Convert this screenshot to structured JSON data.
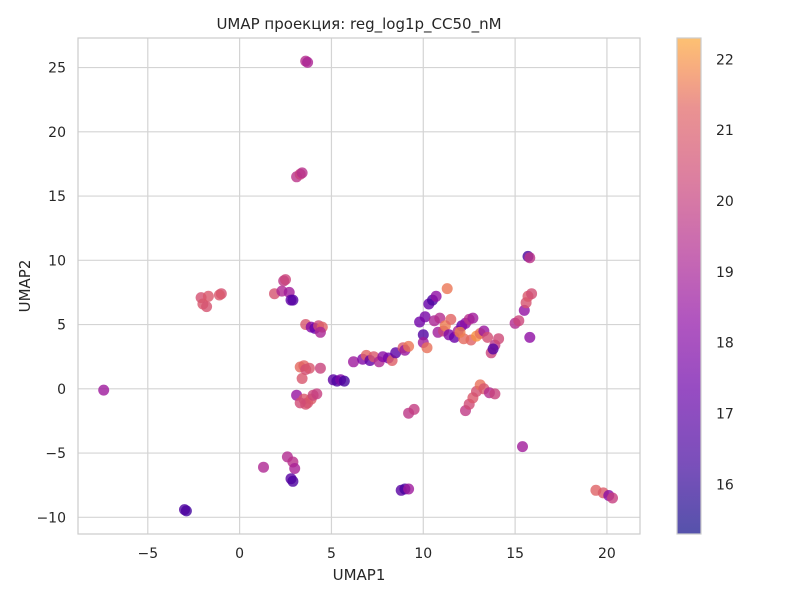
{
  "chart_data": {
    "type": "scatter",
    "title": "UMAP проекция: reg_log1p_CC50_nM",
    "xlabel": "UMAP1",
    "ylabel": "UMAP2",
    "xlim": [
      -8.8,
      21.8
    ],
    "ylim": [
      -11.3,
      27.3
    ],
    "xticks": [
      -5,
      0,
      5,
      10,
      15,
      20
    ],
    "yticks": [
      -10,
      -5,
      0,
      5,
      10,
      15,
      20,
      25
    ],
    "xtick_labels": [
      "−5",
      "0",
      "5",
      "10",
      "15",
      "20"
    ],
    "ytick_labels": [
      "−10",
      "−5",
      "0",
      "5",
      "10",
      "15",
      "20",
      "25"
    ],
    "grid": true,
    "colormap": "plasma",
    "colorbar": {
      "range": [
        15.3,
        22.3
      ],
      "ticks": [
        16,
        17,
        18,
        19,
        20,
        21,
        22
      ],
      "tick_labels": [
        "16",
        "17",
        "18",
        "19",
        "20",
        "21",
        "22"
      ]
    },
    "points": [
      [
        -7.4,
        -0.1,
        18.7
      ],
      [
        -2.9,
        -9.5,
        16.3
      ],
      [
        -3.0,
        -9.4,
        16.6
      ],
      [
        -2.1,
        7.1,
        20.6
      ],
      [
        -2.0,
        6.6,
        20.8
      ],
      [
        -1.8,
        6.4,
        20.7
      ],
      [
        -1.7,
        7.2,
        20.9
      ],
      [
        -1.0,
        7.4,
        20.6
      ],
      [
        -1.1,
        7.3,
        20.9
      ],
      [
        1.3,
        -6.1,
        19.2
      ],
      [
        1.9,
        7.4,
        20.7
      ],
      [
        2.3,
        7.6,
        19.2
      ],
      [
        2.4,
        8.4,
        19.7
      ],
      [
        2.5,
        8.5,
        20.2
      ],
      [
        2.7,
        7.5,
        18.8
      ],
      [
        2.8,
        6.9,
        17.1
      ],
      [
        2.9,
        6.9,
        16.8
      ],
      [
        2.6,
        -5.3,
        19.3
      ],
      [
        2.9,
        -5.7,
        19.5
      ],
      [
        3.0,
        -6.2,
        19.0
      ],
      [
        2.8,
        -7.0,
        16.9
      ],
      [
        2.9,
        -7.2,
        16.6
      ],
      [
        3.1,
        16.5,
        19.6
      ],
      [
        3.3,
        16.7,
        20.1
      ],
      [
        3.4,
        16.8,
        19.5
      ],
      [
        3.6,
        25.5,
        19.4
      ],
      [
        3.7,
        25.4,
        19.1
      ],
      [
        3.1,
        -0.5,
        18.5
      ],
      [
        3.3,
        1.7,
        21.4
      ],
      [
        3.5,
        1.8,
        21.3
      ],
      [
        3.6,
        1.5,
        20.5
      ],
      [
        3.4,
        0.8,
        20.8
      ],
      [
        3.5,
        -0.8,
        20.9
      ],
      [
        3.7,
        -1.1,
        20.6
      ],
      [
        3.9,
        -0.8,
        21.0
      ],
      [
        3.6,
        -1.2,
        20.7
      ],
      [
        3.3,
        -1.1,
        20.4
      ],
      [
        4.0,
        -0.5,
        20.2
      ],
      [
        4.2,
        -0.4,
        20.0
      ],
      [
        3.8,
        1.6,
        20.8
      ],
      [
        4.4,
        1.6,
        20.1
      ],
      [
        3.6,
        5.0,
        20.8
      ],
      [
        3.9,
        4.8,
        18.1
      ],
      [
        4.1,
        4.7,
        17.3
      ],
      [
        4.3,
        4.9,
        20.3
      ],
      [
        4.5,
        4.8,
        21.2
      ],
      [
        4.4,
        4.4,
        19.1
      ],
      [
        5.1,
        0.7,
        17.0
      ],
      [
        5.3,
        0.6,
        16.6
      ],
      [
        5.5,
        0.7,
        17.8
      ],
      [
        5.7,
        0.6,
        16.4
      ],
      [
        6.2,
        2.1,
        18.7
      ],
      [
        6.7,
        2.3,
        17.9
      ],
      [
        6.9,
        2.6,
        21.3
      ],
      [
        7.1,
        2.2,
        17.1
      ],
      [
        7.3,
        2.5,
        20.9
      ],
      [
        7.6,
        2.1,
        19.2
      ],
      [
        7.8,
        2.5,
        18.2
      ],
      [
        8.1,
        2.4,
        17.7
      ],
      [
        8.3,
        2.2,
        21.1
      ],
      [
        8.5,
        2.8,
        17.0
      ],
      [
        8.9,
        3.2,
        21.0
      ],
      [
        9.0,
        3.0,
        18.6
      ],
      [
        9.2,
        3.3,
        21.6
      ],
      [
        8.8,
        -7.9,
        16.9
      ],
      [
        9.0,
        -7.8,
        16.5
      ],
      [
        9.2,
        -7.8,
        18.7
      ],
      [
        9.2,
        -1.9,
        19.7
      ],
      [
        9.5,
        -1.6,
        19.9
      ],
      [
        9.8,
        5.2,
        17.5
      ],
      [
        10.0,
        4.2,
        16.7
      ],
      [
        10.0,
        3.6,
        18.8
      ],
      [
        10.2,
        3.2,
        21.5
      ],
      [
        10.1,
        5.6,
        17.7
      ],
      [
        10.3,
        6.6,
        17.2
      ],
      [
        10.5,
        6.9,
        16.6
      ],
      [
        10.7,
        7.2,
        18.3
      ],
      [
        10.6,
        5.3,
        19.1
      ],
      [
        10.9,
        5.5,
        19.4
      ],
      [
        10.8,
        4.4,
        18.8
      ],
      [
        11.1,
        4.5,
        20.1
      ],
      [
        11.3,
        7.8,
        21.6
      ],
      [
        11.2,
        4.9,
        21.7
      ],
      [
        11.5,
        5.4,
        21.3
      ],
      [
        11.4,
        4.2,
        17.9
      ],
      [
        11.7,
        4.0,
        17.3
      ],
      [
        11.9,
        4.5,
        19.0
      ],
      [
        12.1,
        4.9,
        17.2
      ],
      [
        12.3,
        5.1,
        18.3
      ],
      [
        12.5,
        5.4,
        19.5
      ],
      [
        12.7,
        5.5,
        18.8
      ],
      [
        12.6,
        3.8,
        21.2
      ],
      [
        12.9,
        4.1,
        22.0
      ],
      [
        13.1,
        4.3,
        21.5
      ],
      [
        12.2,
        3.9,
        21.4
      ],
      [
        12.0,
        4.4,
        21.7
      ],
      [
        13.3,
        4.5,
        18.6
      ],
      [
        13.5,
        4.0,
        20.5
      ],
      [
        13.7,
        2.8,
        20.2
      ],
      [
        13.9,
        3.4,
        19.6
      ],
      [
        13.8,
        3.1,
        16.8
      ],
      [
        14.1,
        3.9,
        20.3
      ],
      [
        12.3,
        -1.7,
        19.8
      ],
      [
        12.5,
        -1.2,
        20.4
      ],
      [
        12.7,
        -0.7,
        20.9
      ],
      [
        12.9,
        -0.2,
        20.6
      ],
      [
        13.1,
        0.3,
        21.5
      ],
      [
        13.3,
        0.0,
        20.8
      ],
      [
        13.6,
        -0.3,
        19.4
      ],
      [
        13.9,
        -0.4,
        20.1
      ],
      [
        15.0,
        5.1,
        19.3
      ],
      [
        15.2,
        5.3,
        20.2
      ],
      [
        15.5,
        6.1,
        18.4
      ],
      [
        15.6,
        6.7,
        20.7
      ],
      [
        15.7,
        7.2,
        20.9
      ],
      [
        15.9,
        7.4,
        20.5
      ],
      [
        15.7,
        10.3,
        16.4
      ],
      [
        15.8,
        10.2,
        19.6
      ],
      [
        15.8,
        4.0,
        18.3
      ],
      [
        15.4,
        -4.5,
        18.8
      ],
      [
        19.4,
        -7.9,
        21.2
      ],
      [
        19.8,
        -8.1,
        21.0
      ],
      [
        20.1,
        -8.3,
        18.2
      ],
      [
        20.3,
        -8.5,
        20.0
      ]
    ]
  }
}
